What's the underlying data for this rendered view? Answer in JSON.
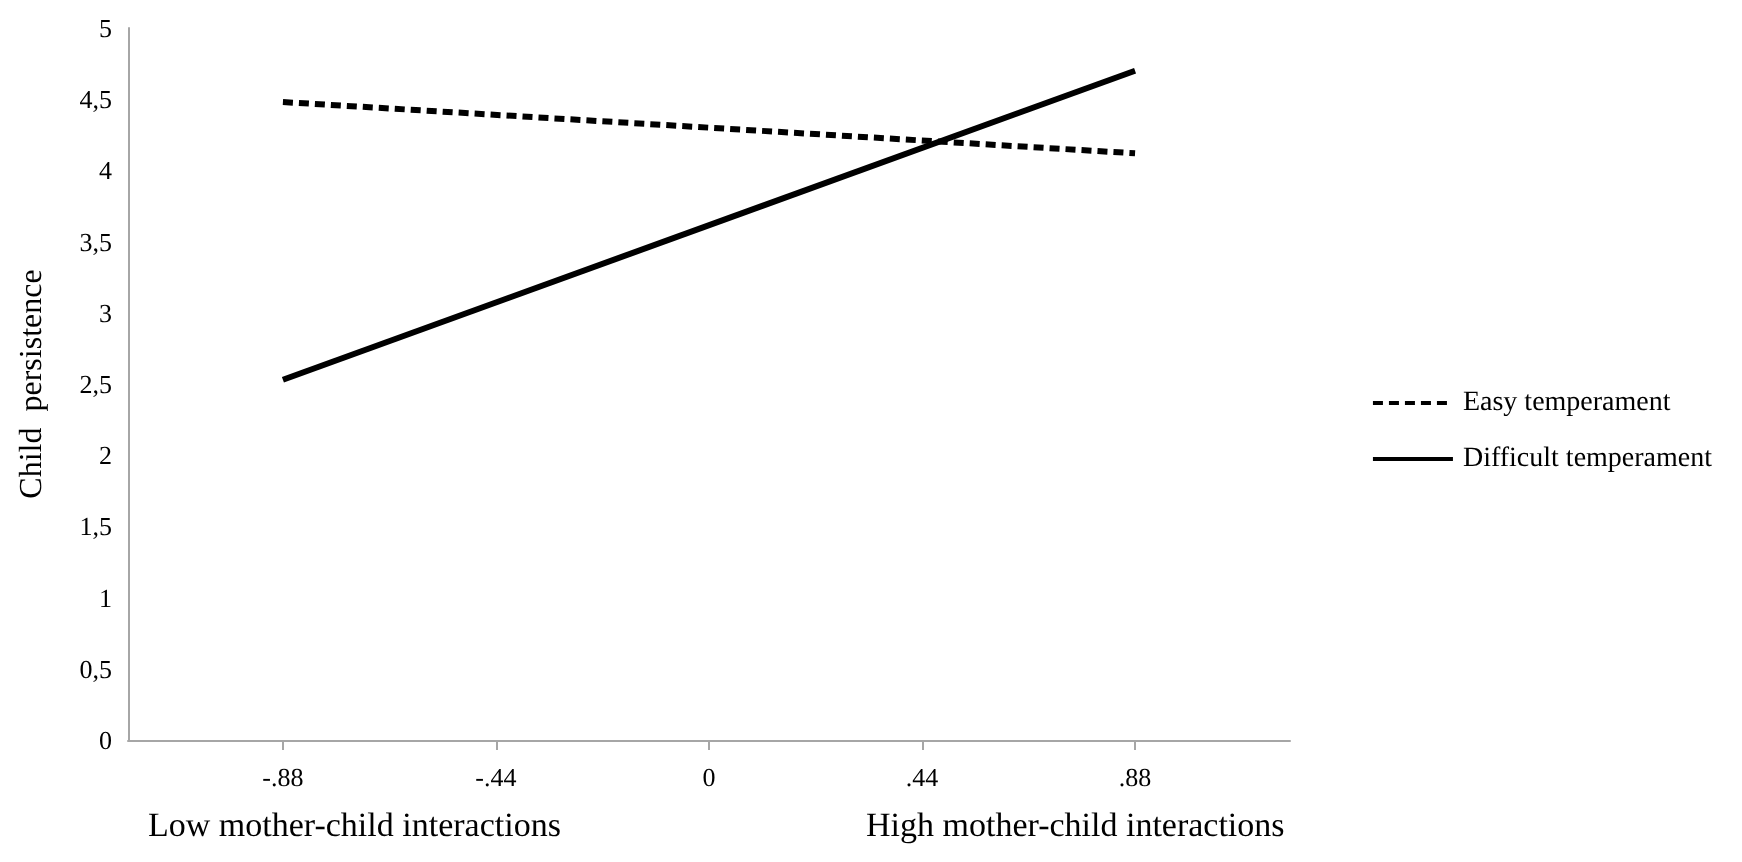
{
  "chart_data": {
    "type": "line",
    "ylabel": "Child  persistence",
    "x": [
      -0.88,
      0.88
    ],
    "series": [
      {
        "name": "Easy temperament",
        "color": "#000000",
        "line_style": "dashed",
        "values": [
          4.48,
          4.12
        ]
      },
      {
        "name": "Difficult temperament",
        "color": "#000000",
        "line_style": "solid",
        "values": [
          2.53,
          4.7
        ]
      }
    ],
    "xlim": [
      -1.2,
      1.2
    ],
    "xticks": [
      {
        "value": -0.88,
        "label": "-.88"
      },
      {
        "value": -0.44,
        "label": "-.44"
      },
      0,
      {
        "value": 0.44,
        "label": ".44"
      },
      {
        "value": 0.88,
        "label": ".88"
      }
    ],
    "ylim": [
      0,
      5
    ],
    "yticks": [
      0,
      {
        "value": 0.5,
        "label": "0,5"
      },
      1,
      {
        "value": 1.5,
        "label": "1,5"
      },
      2,
      {
        "value": 2.5,
        "label": "2,5"
      },
      3,
      {
        "value": 3.5,
        "label": "3,5"
      },
      4,
      {
        "value": 4.5,
        "label": "4,5"
      },
      5
    ],
    "annotations": [
      "Low mother-child interactions",
      "High mother-child interactions"
    ],
    "legend": "right",
    "grid": false,
    "marker": "none"
  }
}
